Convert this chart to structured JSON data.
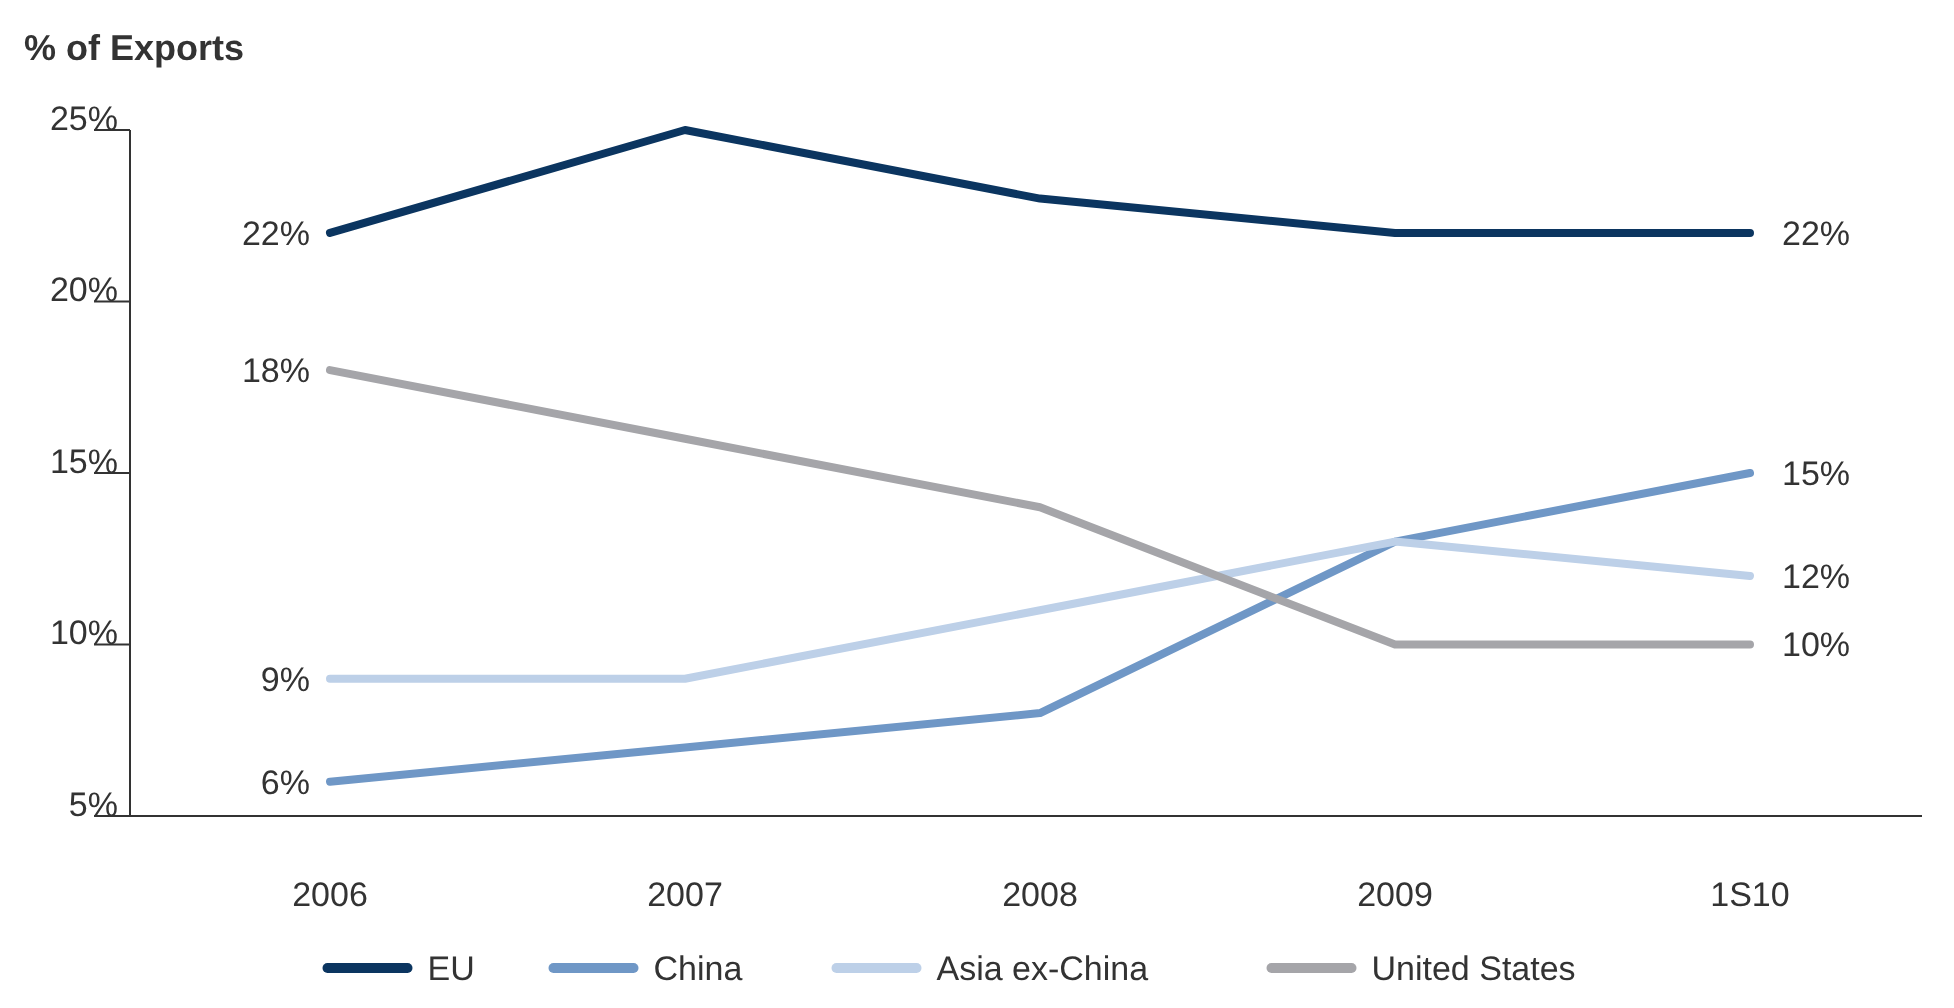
{
  "chart_data": {
    "type": "line",
    "ylabel": "% of Exports",
    "categories": [
      "2006",
      "2007",
      "2008",
      "2009",
      "1S10"
    ],
    "ylim": [
      5,
      25
    ],
    "yticks": [
      {
        "value": 5,
        "label": "5%"
      },
      {
        "value": 10,
        "label": "10%"
      },
      {
        "value": 15,
        "label": "15%"
      },
      {
        "value": 20,
        "label": "20%"
      },
      {
        "value": 25,
        "label": "25%"
      }
    ],
    "series": [
      {
        "name": "EU",
        "color": "#0b3560",
        "values": [
          22,
          25,
          23,
          22,
          22
        ],
        "value_labels": [
          "22%",
          null,
          null,
          null,
          "22%"
        ]
      },
      {
        "name": "China",
        "color": "#6f97c6",
        "values": [
          6,
          7,
          8,
          13,
          15
        ],
        "value_labels": [
          "6%",
          null,
          null,
          null,
          "15%"
        ]
      },
      {
        "name": "Asia ex-China",
        "color": "#bdd0e8",
        "values": [
          9,
          9,
          11,
          13,
          12
        ],
        "value_labels": [
          "9%",
          null,
          null,
          null,
          "12%"
        ]
      },
      {
        "name": "United States",
        "color": "#a5a5a9",
        "values": [
          18,
          16,
          14,
          10,
          10
        ],
        "value_labels": [
          "18%",
          null,
          null,
          null,
          "10%"
        ]
      }
    ],
    "grid": false,
    "legend": "bottom",
    "marker": "none",
    "line_style": "solid"
  }
}
